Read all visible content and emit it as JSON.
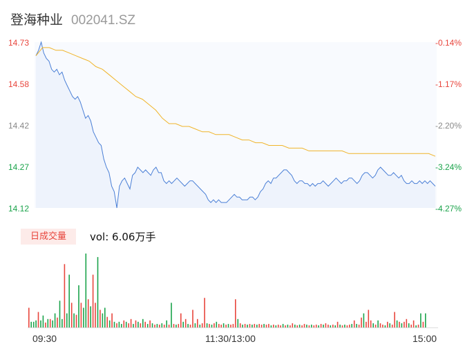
{
  "header": {
    "name": "登海种业",
    "code": "002041.SZ"
  },
  "price_axis": {
    "labels": [
      "14.73",
      "14.58",
      "14.42",
      "14.27",
      "14.12"
    ],
    "pct_labels": [
      "-0.14%",
      "-1.17%",
      "-2.20%",
      "-3.24%",
      "-4.27%"
    ]
  },
  "volume": {
    "tab_label": "日成交量",
    "text": "vol: 6.06万手"
  },
  "time_axis": {
    "labels": [
      "09:30",
      "11:30/13:00",
      "15:00"
    ]
  },
  "colors": {
    "up": "#e8453c",
    "down": "#1aa34a",
    "neutral": "#888888",
    "price_line": "#4a7fd6",
    "avg_line": "#f0b429"
  },
  "chart_data": {
    "type": "line",
    "ylim": [
      14.12,
      14.73
    ],
    "series": [
      {
        "kind": "price",
        "values": [
          14.68,
          14.7,
          14.73,
          14.69,
          14.67,
          14.66,
          14.63,
          14.62,
          14.63,
          14.61,
          14.62,
          14.59,
          14.57,
          14.55,
          14.53,
          14.52,
          14.53,
          14.51,
          14.48,
          14.45,
          14.46,
          14.44,
          14.4,
          14.38,
          14.36,
          14.35,
          14.3,
          14.27,
          14.25,
          14.2,
          14.18,
          14.12,
          14.2,
          14.22,
          14.23,
          14.21,
          14.19,
          14.24,
          14.25,
          14.27,
          14.26,
          14.25,
          14.26,
          14.25,
          14.24,
          14.26,
          14.27,
          14.25,
          14.25,
          14.22,
          14.21,
          14.22,
          14.21,
          14.22,
          14.23,
          14.22,
          14.21,
          14.2,
          14.21,
          14.22,
          14.22,
          14.21,
          14.2,
          14.19,
          14.18,
          14.17,
          14.15,
          14.14,
          14.15,
          14.14,
          14.15,
          14.14,
          14.14,
          14.14,
          14.15,
          14.16,
          14.17,
          14.16,
          14.16,
          14.15,
          14.15,
          14.15,
          14.16,
          14.16,
          14.15,
          14.16,
          14.18,
          14.19,
          14.21,
          14.22,
          14.21,
          14.23,
          14.23,
          14.24,
          14.25,
          14.26,
          14.26,
          14.25,
          14.24,
          14.22,
          14.21,
          14.22,
          14.22,
          14.21,
          14.21,
          14.2,
          14.21,
          14.2,
          14.21,
          14.21,
          14.22,
          14.21,
          14.2,
          14.21,
          14.22,
          14.23,
          14.22,
          14.21,
          14.22,
          14.22,
          14.23,
          14.23,
          14.22,
          14.21,
          14.22,
          14.24,
          14.25,
          14.25,
          14.24,
          14.23,
          14.24,
          14.26,
          14.27,
          14.26,
          14.25,
          14.24,
          14.24,
          14.25,
          14.24,
          14.23,
          14.24,
          14.22,
          14.21,
          14.21,
          14.22,
          14.21,
          14.21,
          14.22,
          14.21,
          14.22,
          14.21,
          14.22,
          14.21,
          14.2
        ],
        "note": ""
      },
      {
        "kind": "average",
        "values": [
          14.68,
          14.71,
          14.71,
          14.7,
          14.7,
          14.69,
          14.68,
          14.67,
          14.66,
          14.64,
          14.63,
          14.61,
          14.59,
          14.57,
          14.55,
          14.53,
          14.52,
          14.5,
          14.48,
          14.45,
          14.43,
          14.43,
          14.42,
          14.42,
          14.41,
          14.4,
          14.4,
          14.39,
          14.39,
          14.39,
          14.38,
          14.37,
          14.37,
          14.36,
          14.36,
          14.35,
          14.35,
          14.35,
          14.34,
          14.34,
          14.34,
          14.33,
          14.33,
          14.33,
          14.33,
          14.33,
          14.33,
          14.32,
          14.32,
          14.32,
          14.32,
          14.32,
          14.32,
          14.32,
          14.32,
          14.32,
          14.32,
          14.32,
          14.32,
          14.32,
          14.31
        ]
      }
    ],
    "volume_bars": [
      {
        "v": 28,
        "c": "up"
      },
      {
        "v": 8,
        "c": "down"
      },
      {
        "v": 8,
        "c": "down"
      },
      {
        "v": 10,
        "c": "down"
      },
      {
        "v": 22,
        "c": "up"
      },
      {
        "v": 10,
        "c": "down"
      },
      {
        "v": 17,
        "c": "down"
      },
      {
        "v": 7,
        "c": "up"
      },
      {
        "v": 12,
        "c": "down"
      },
      {
        "v": 12,
        "c": "up"
      },
      {
        "v": 10,
        "c": "down"
      },
      {
        "v": 20,
        "c": "down"
      },
      {
        "v": 14,
        "c": "up"
      },
      {
        "v": 38,
        "c": "down"
      },
      {
        "v": 12,
        "c": "down"
      },
      {
        "v": 90,
        "c": "up"
      },
      {
        "v": 20,
        "c": "down"
      },
      {
        "v": 75,
        "c": "down"
      },
      {
        "v": 35,
        "c": "up"
      },
      {
        "v": 20,
        "c": "down"
      },
      {
        "v": 18,
        "c": "up"
      },
      {
        "v": 60,
        "c": "down"
      },
      {
        "v": 35,
        "c": "up"
      },
      {
        "v": 28,
        "c": "down"
      },
      {
        "v": 105,
        "c": "down"
      },
      {
        "v": 40,
        "c": "up"
      },
      {
        "v": 30,
        "c": "down"
      },
      {
        "v": 75,
        "c": "up"
      },
      {
        "v": 35,
        "c": "up"
      },
      {
        "v": 100,
        "c": "down"
      },
      {
        "v": 25,
        "c": "up"
      },
      {
        "v": 20,
        "c": "down"
      },
      {
        "v": 28,
        "c": "down"
      },
      {
        "v": 15,
        "c": "up"
      },
      {
        "v": 10,
        "c": "down"
      },
      {
        "v": 20,
        "c": "up"
      },
      {
        "v": 8,
        "c": "down"
      },
      {
        "v": 6,
        "c": "up"
      },
      {
        "v": 8,
        "c": "down"
      },
      {
        "v": 5,
        "c": "down"
      },
      {
        "v": 10,
        "c": "up"
      },
      {
        "v": 8,
        "c": "down"
      },
      {
        "v": 6,
        "c": "up"
      },
      {
        "v": 12,
        "c": "up"
      },
      {
        "v": 5,
        "c": "down"
      },
      {
        "v": 10,
        "c": "up"
      },
      {
        "v": 8,
        "c": "down"
      },
      {
        "v": 6,
        "c": "up"
      },
      {
        "v": 12,
        "c": "down"
      },
      {
        "v": 8,
        "c": "up"
      },
      {
        "v": 5,
        "c": "down"
      },
      {
        "v": 10,
        "c": "up"
      },
      {
        "v": 6,
        "c": "down"
      },
      {
        "v": 4,
        "c": "up"
      },
      {
        "v": 5,
        "c": "down"
      },
      {
        "v": 4,
        "c": "up"
      },
      {
        "v": 6,
        "c": "down"
      },
      {
        "v": 4,
        "c": "up"
      },
      {
        "v": 10,
        "c": "down"
      },
      {
        "v": 4,
        "c": "up"
      },
      {
        "v": 35,
        "c": "down"
      },
      {
        "v": 5,
        "c": "up"
      },
      {
        "v": 4,
        "c": "down"
      },
      {
        "v": 5,
        "c": "up"
      },
      {
        "v": 20,
        "c": "up"
      },
      {
        "v": 8,
        "c": "down"
      },
      {
        "v": 12,
        "c": "up"
      },
      {
        "v": 5,
        "c": "down"
      },
      {
        "v": 4,
        "c": "up"
      },
      {
        "v": 25,
        "c": "up"
      },
      {
        "v": 6,
        "c": "down"
      },
      {
        "v": 12,
        "c": "up"
      },
      {
        "v": 4,
        "c": "down"
      },
      {
        "v": 6,
        "c": "up"
      },
      {
        "v": 42,
        "c": "up"
      },
      {
        "v": 6,
        "c": "down"
      },
      {
        "v": 5,
        "c": "up"
      },
      {
        "v": 4,
        "c": "down"
      },
      {
        "v": 6,
        "c": "up"
      },
      {
        "v": 8,
        "c": "down"
      },
      {
        "v": 5,
        "c": "up"
      },
      {
        "v": 4,
        "c": "up"
      },
      {
        "v": 6,
        "c": "down"
      },
      {
        "v": 4,
        "c": "up"
      },
      {
        "v": 5,
        "c": "down"
      },
      {
        "v": 4,
        "c": "up"
      },
      {
        "v": 5,
        "c": "up"
      },
      {
        "v": 40,
        "c": "up"
      },
      {
        "v": 12,
        "c": "down"
      },
      {
        "v": 6,
        "c": "up"
      },
      {
        "v": 4,
        "c": "down"
      },
      {
        "v": 5,
        "c": "up"
      },
      {
        "v": 4,
        "c": "down"
      },
      {
        "v": 5,
        "c": "up"
      },
      {
        "v": 4,
        "c": "down"
      },
      {
        "v": 5,
        "c": "up"
      },
      {
        "v": 4,
        "c": "down"
      },
      {
        "v": 5,
        "c": "up"
      },
      {
        "v": 4,
        "c": "up"
      },
      {
        "v": 5,
        "c": "down"
      },
      {
        "v": 4,
        "c": "up"
      },
      {
        "v": 5,
        "c": "up"
      },
      {
        "v": 3,
        "c": "down"
      },
      {
        "v": 4,
        "c": "up"
      },
      {
        "v": 3,
        "c": "down"
      },
      {
        "v": 4,
        "c": "up"
      },
      {
        "v": 3,
        "c": "up"
      },
      {
        "v": 5,
        "c": "down"
      },
      {
        "v": 3,
        "c": "up"
      },
      {
        "v": 4,
        "c": "down"
      },
      {
        "v": 3,
        "c": "up"
      },
      {
        "v": 6,
        "c": "up"
      },
      {
        "v": 4,
        "c": "down"
      },
      {
        "v": 3,
        "c": "up"
      },
      {
        "v": 4,
        "c": "down"
      },
      {
        "v": 3,
        "c": "up"
      },
      {
        "v": 5,
        "c": "up"
      },
      {
        "v": 4,
        "c": "down"
      },
      {
        "v": 3,
        "c": "up"
      },
      {
        "v": 4,
        "c": "down"
      },
      {
        "v": 3,
        "c": "up"
      },
      {
        "v": 4,
        "c": "up"
      },
      {
        "v": 3,
        "c": "down"
      },
      {
        "v": 5,
        "c": "up"
      },
      {
        "v": 4,
        "c": "down"
      },
      {
        "v": 6,
        "c": "up"
      },
      {
        "v": 4,
        "c": "up"
      },
      {
        "v": 3,
        "c": "down"
      },
      {
        "v": 4,
        "c": "up"
      },
      {
        "v": 3,
        "c": "down"
      },
      {
        "v": 8,
        "c": "up"
      },
      {
        "v": 4,
        "c": "down"
      },
      {
        "v": 3,
        "c": "up"
      },
      {
        "v": 4,
        "c": "down"
      },
      {
        "v": 3,
        "c": "up"
      },
      {
        "v": 4,
        "c": "up"
      },
      {
        "v": 5,
        "c": "down"
      },
      {
        "v": 10,
        "c": "up"
      },
      {
        "v": 5,
        "c": "down"
      },
      {
        "v": 4,
        "c": "up"
      },
      {
        "v": 14,
        "c": "up"
      },
      {
        "v": 20,
        "c": "down"
      },
      {
        "v": 8,
        "c": "up"
      },
      {
        "v": 25,
        "c": "up"
      },
      {
        "v": 10,
        "c": "up"
      },
      {
        "v": 6,
        "c": "down"
      },
      {
        "v": 4,
        "c": "up"
      },
      {
        "v": 10,
        "c": "down"
      },
      {
        "v": 6,
        "c": "up"
      },
      {
        "v": 4,
        "c": "up"
      },
      {
        "v": 3,
        "c": "down"
      },
      {
        "v": 8,
        "c": "up"
      },
      {
        "v": 6,
        "c": "down"
      },
      {
        "v": 4,
        "c": "up"
      },
      {
        "v": 22,
        "c": "up"
      },
      {
        "v": 10,
        "c": "down"
      },
      {
        "v": 8,
        "c": "up"
      },
      {
        "v": 6,
        "c": "down"
      },
      {
        "v": 8,
        "c": "up"
      },
      {
        "v": 12,
        "c": "up"
      },
      {
        "v": 6,
        "c": "down"
      },
      {
        "v": 4,
        "c": "up"
      },
      {
        "v": 10,
        "c": "up"
      },
      {
        "v": 3,
        "c": "down"
      },
      {
        "v": 4,
        "c": "up"
      },
      {
        "v": 20,
        "c": "down"
      },
      {
        "v": 8,
        "c": "up"
      },
      {
        "v": 20,
        "c": "down"
      }
    ]
  }
}
